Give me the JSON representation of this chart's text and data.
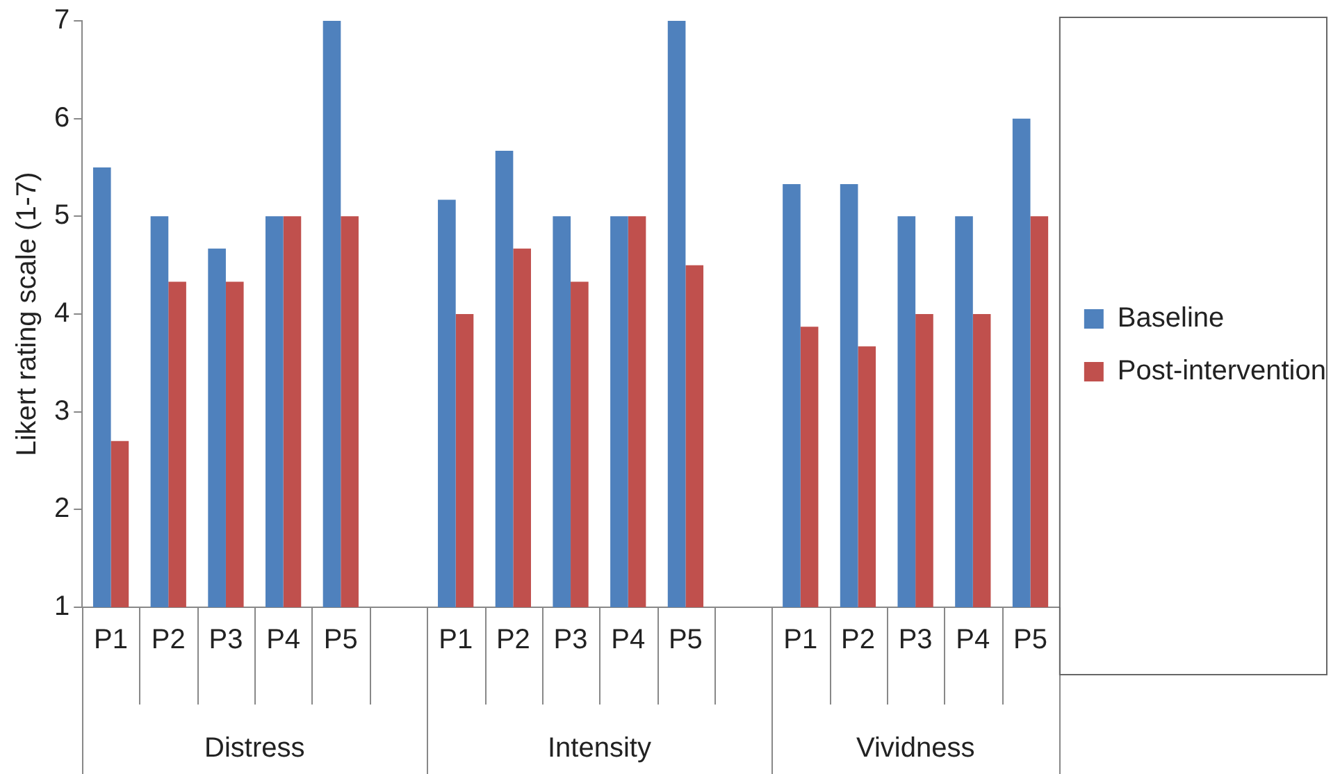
{
  "chart_data": {
    "type": "bar",
    "ylabel": "Likert rating scale (1-7)",
    "categories": [
      "P1",
      "P2",
      "P3",
      "P4",
      "P5",
      null,
      "P1",
      "P2",
      "P3",
      "P4",
      "P5",
      null,
      "P1",
      "P2",
      "P3",
      "P4",
      "P5"
    ],
    "series": [
      {
        "name": "Baseline",
        "color": "#4f81bd",
        "values": [
          5.5,
          5.0,
          4.67,
          5.0,
          7.0,
          null,
          5.17,
          5.67,
          5.0,
          5.0,
          7.0,
          null,
          5.33,
          5.33,
          5.0,
          5.0,
          6.0
        ]
      },
      {
        "name": "Post-intervention",
        "color": "#c0504d",
        "values": [
          2.7,
          4.33,
          4.33,
          5.0,
          5.0,
          null,
          4.0,
          4.67,
          4.33,
          5.0,
          4.5,
          null,
          3.87,
          3.67,
          4.0,
          4.0,
          5.0
        ]
      }
    ],
    "ylim": [
      1,
      7
    ],
    "yticks": [
      1,
      2,
      3,
      4,
      5,
      6,
      7
    ],
    "grid": false,
    "legend": "right",
    "annotations": [
      "Distress",
      "Intensity",
      "Vividness"
    ]
  }
}
